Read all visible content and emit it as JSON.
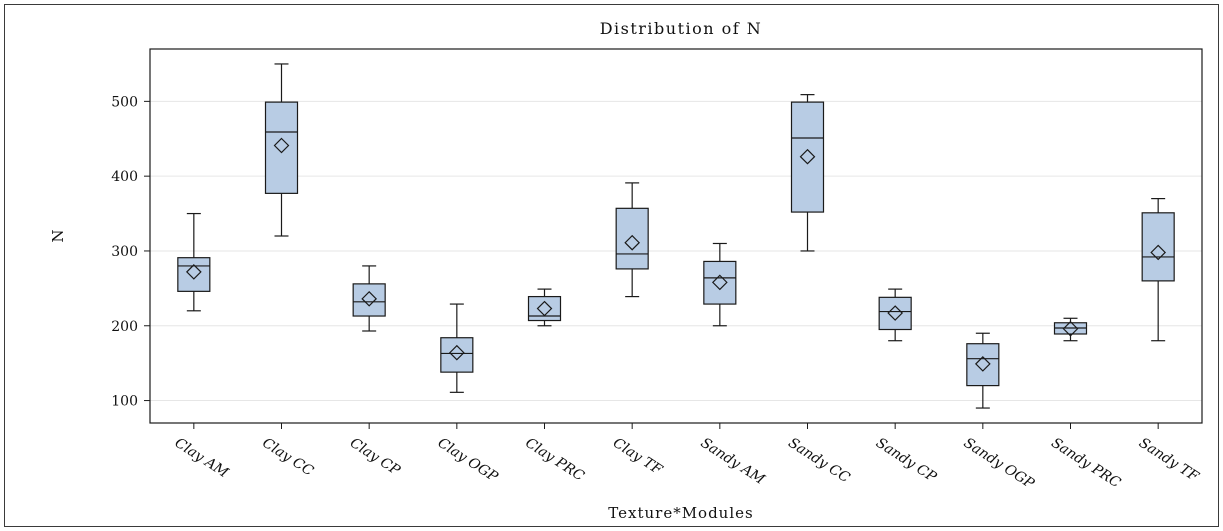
{
  "chart_data": {
    "type": "box",
    "title": "Distribution of N",
    "xlabel": "Texture*Modules",
    "ylabel": "N",
    "ylim": [
      70,
      570
    ],
    "yticks": [
      100,
      200,
      300,
      400,
      500
    ],
    "grid": "horizontal",
    "colors": {
      "box_fill": "#b8cce4",
      "line": "#1a1a1a",
      "grid": "#e6e6e6"
    },
    "categories": [
      "Clay AM",
      "Clay CC",
      "Clay CP",
      "Clay OGP",
      "Clay PRC",
      "Clay TF",
      "Sandy AM",
      "Sandy CC",
      "Sandy CP",
      "Sandy OGP",
      "Sandy PRC",
      "Sandy TF"
    ],
    "boxes": [
      {
        "min": 220,
        "q1": 246,
        "median": 280,
        "q3": 291,
        "max": 350,
        "mean": 272
      },
      {
        "min": 320,
        "q1": 377,
        "median": 459,
        "q3": 499,
        "max": 550,
        "mean": 441
      },
      {
        "min": 193,
        "q1": 213,
        "median": 232,
        "q3": 256,
        "max": 280,
        "mean": 236
      },
      {
        "min": 111,
        "q1": 138,
        "median": 163,
        "q3": 184,
        "max": 229,
        "mean": 164
      },
      {
        "min": 200,
        "q1": 207,
        "median": 213,
        "q3": 239,
        "max": 249,
        "mean": 223
      },
      {
        "min": 239,
        "q1": 276,
        "median": 296,
        "q3": 357,
        "max": 391,
        "mean": 311
      },
      {
        "min": 200,
        "q1": 229,
        "median": 264,
        "q3": 286,
        "max": 310,
        "mean": 258
      },
      {
        "min": 300,
        "q1": 352,
        "median": 451,
        "q3": 499,
        "max": 509,
        "mean": 426
      },
      {
        "min": 180,
        "q1": 195,
        "median": 219,
        "q3": 238,
        "max": 249,
        "mean": 217
      },
      {
        "min": 90,
        "q1": 120,
        "median": 156,
        "q3": 176,
        "max": 190,
        "mean": 149
      },
      {
        "min": 180,
        "q1": 189,
        "median": 197,
        "q3": 204,
        "max": 210,
        "mean": 196
      },
      {
        "min": 180,
        "q1": 260,
        "median": 292,
        "q3": 351,
        "max": 370,
        "mean": 298
      }
    ]
  }
}
